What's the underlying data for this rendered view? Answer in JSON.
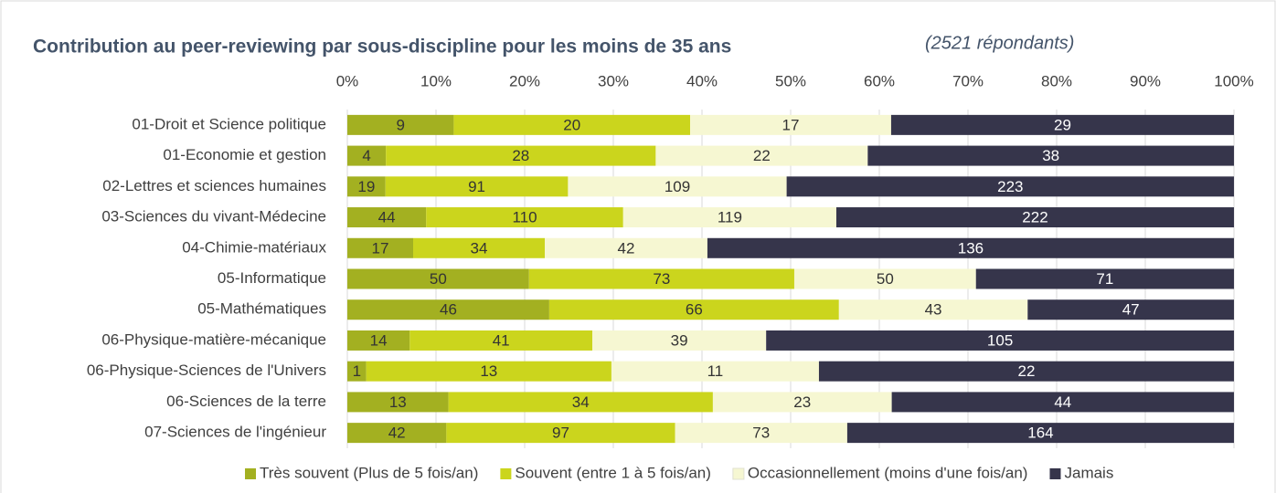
{
  "chart_data": {
    "type": "bar",
    "orientation": "horizontal",
    "stack": "percent",
    "title": "Contribution au peer-reviewing par sous-discipline pour les moins de 35 ans",
    "subtitle": "(2521 répondants)",
    "categories": [
      "01-Droit et Science politique",
      "01-Economie et gestion",
      "02-Lettres et sciences humaines",
      "03-Sciences du vivant-Médecine",
      "04-Chimie-matériaux",
      "05-Informatique",
      "05-Mathématiques",
      "06-Physique-matière-mécanique",
      "06-Physique-Sciences de l'Univers",
      "06-Sciences de la terre",
      "07-Sciences de l'ingénieur"
    ],
    "series": [
      {
        "name": "Très souvent (Plus de 5 fois/an)",
        "color": "#a3b021",
        "values": [
          9,
          4,
          19,
          44,
          17,
          50,
          46,
          14,
          1,
          13,
          42
        ]
      },
      {
        "name": "Souvent (entre 1 à 5 fois/an)",
        "color": "#cbd51d",
        "values": [
          20,
          28,
          91,
          110,
          34,
          73,
          66,
          41,
          13,
          34,
          97
        ]
      },
      {
        "name": "Occasionnellement (moins d'une fois/an)",
        "color": "#f6f7d2",
        "values": [
          17,
          22,
          109,
          119,
          42,
          50,
          43,
          39,
          11,
          23,
          73
        ]
      },
      {
        "name": "Jamais",
        "color": "#36354b",
        "values": [
          29,
          38,
          223,
          222,
          136,
          71,
          47,
          105,
          22,
          44,
          164
        ]
      }
    ],
    "xlim": [
      0,
      100
    ],
    "xticks": [
      {
        "value": 0,
        "label": "0%"
      },
      {
        "value": 10,
        "label": "10%"
      },
      {
        "value": 20,
        "label": "20%"
      },
      {
        "value": 30,
        "label": "30%"
      },
      {
        "value": 40,
        "label": "40%"
      },
      {
        "value": 50,
        "label": "50%"
      },
      {
        "value": 60,
        "label": "60%"
      },
      {
        "value": 70,
        "label": "70%"
      },
      {
        "value": 80,
        "label": "80%"
      },
      {
        "value": 90,
        "label": "90%"
      },
      {
        "value": 100,
        "label": "100%"
      }
    ],
    "grid": true,
    "legend": "bottom"
  }
}
